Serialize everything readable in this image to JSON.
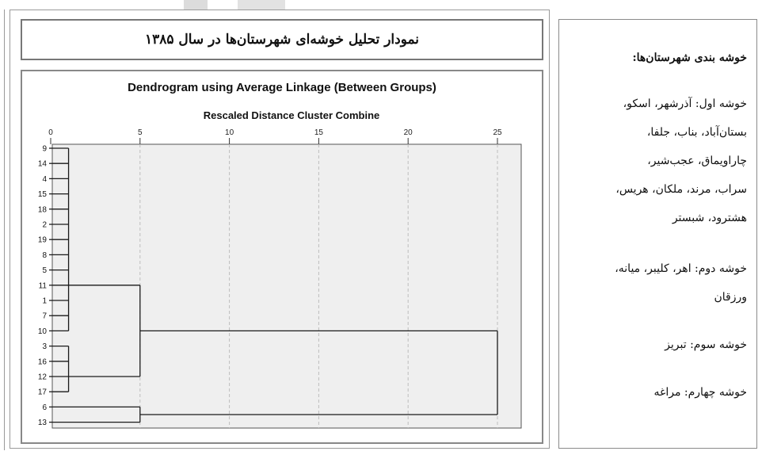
{
  "page_title": "نمودار تحلیل خوشه‌ای شهرستان‌ها در سال ۱۳۸۵",
  "chart_data": {
    "type": "dendrogram",
    "title": "Dendrogram using Average Linkage (Between Groups)",
    "subtitle": "Rescaled Distance Cluster Combine",
    "xaxis_ticks": [
      0,
      5,
      10,
      15,
      20,
      25
    ],
    "xlim": [
      0,
      25
    ],
    "grid": true,
    "leaves": [
      "9",
      "14",
      "4",
      "15",
      "18",
      "2",
      "19",
      "8",
      "5",
      "11",
      "1",
      "7",
      "10",
      "3",
      "16",
      "12",
      "17",
      "6",
      "13"
    ],
    "merges": [
      {
        "members": [
          "9",
          "14",
          "4",
          "15",
          "18",
          "2",
          "19",
          "8",
          "5",
          "11",
          "1",
          "7",
          "10"
        ],
        "distance": 1
      },
      {
        "members": [
          "3",
          "16",
          "12",
          "17"
        ],
        "distance": 1
      },
      {
        "members": [
          "6",
          "13"
        ],
        "distance": 5
      },
      {
        "members": [
          "cluster-1",
          "cluster-2"
        ],
        "distance": 5
      },
      {
        "members": [
          "cluster-4",
          "cluster-3"
        ],
        "distance": 25
      }
    ]
  },
  "right_panel": {
    "heading": "خوشه بندی شهرستان‌ها:",
    "lines": [
      "خوشه اول: آذرشهر، اسکو،",
      "بستان‌آباد، بناب، جلفا،",
      "چاراویماق، عجب‌شیر،",
      "سراب، مرند، ملکان، هریس،",
      "هشترود، شبستر",
      "خوشه دوم: اهر، کلیبر، میانه،",
      "ورزقان",
      "خوشه سوم: تبریز",
      "خوشه چهارم: مراغه"
    ]
  },
  "colors": {
    "plot_background": "#efefef",
    "line": "#1a1a1a",
    "grid": "#bdbdbd",
    "frame": "#888888"
  }
}
